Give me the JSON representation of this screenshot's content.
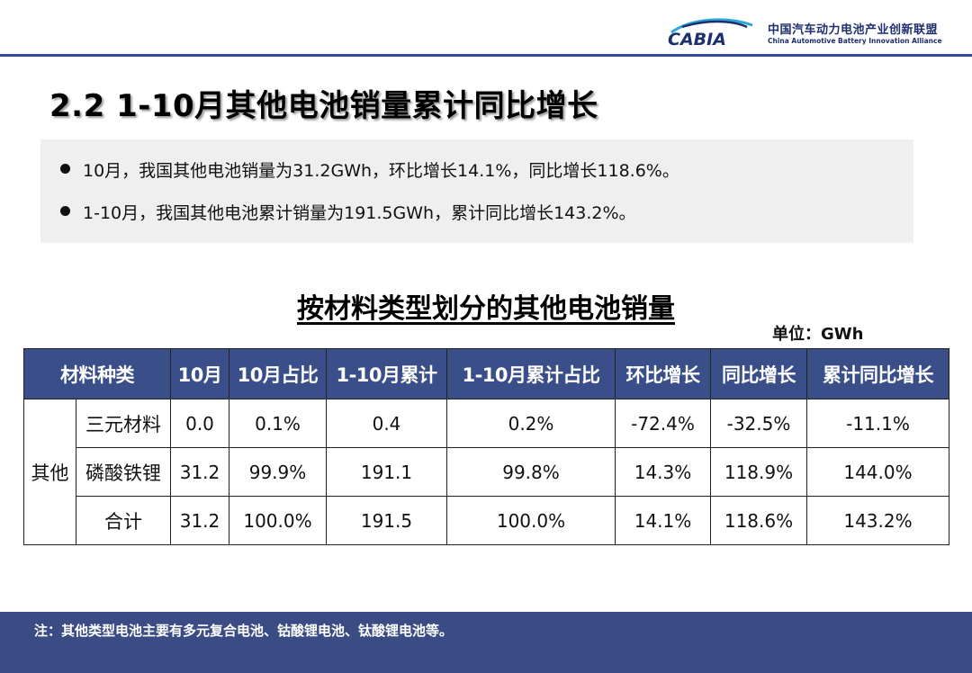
{
  "logo": {
    "mark_text": "CABIA",
    "name_cn": "中国汽车动力电池产业创新联盟",
    "name_en": "China Automotive Battery Innovation Alliance",
    "color": "#1e2f6e"
  },
  "page_title": "2.2 1-10月其他电池销量累计同比增长",
  "summary": [
    "10月，我国其他电池销量为31.2GWh，环比增长14.1%，同比增长118.6%。",
    "1-10月，我国其他电池累计销量为191.5GWh，累计同比增长143.2%。"
  ],
  "table_title": "按材料类型划分的其他电池销量",
  "unit": "单位：GWh",
  "table": {
    "headers": [
      "材料种类",
      "10月",
      "10月占比",
      "1-10月累计",
      "1-10月累计占比",
      "环比增长",
      "同比增长",
      "累计同比增长"
    ],
    "group_label": "其他",
    "rows": [
      {
        "material": "三元材料",
        "oct": "0.0",
        "oct_share": "0.1%",
        "ytd": "0.4",
        "ytd_share": "0.2%",
        "mom": "-72.4%",
        "yoy": "-32.5%",
        "ytd_yoy": "-11.1%"
      },
      {
        "material": "磷酸铁锂",
        "oct": "31.2",
        "oct_share": "99.9%",
        "ytd": "191.1",
        "ytd_share": "99.8%",
        "mom": "14.3%",
        "yoy": "118.9%",
        "ytd_yoy": "144.0%"
      },
      {
        "material": "合计",
        "oct": "31.2",
        "oct_share": "100.0%",
        "ytd": "191.5",
        "ytd_share": "100.0%",
        "mom": "14.1%",
        "yoy": "118.6%",
        "ytd_yoy": "143.2%"
      }
    ],
    "header_color": "#3a4f8a"
  },
  "footer_note": "注：其他类型电池主要有多元复合电池、钴酸锂电池、钛酸锂电池等。",
  "colors": {
    "accent": "#2f4e9a",
    "footer": "#3a4c83"
  }
}
